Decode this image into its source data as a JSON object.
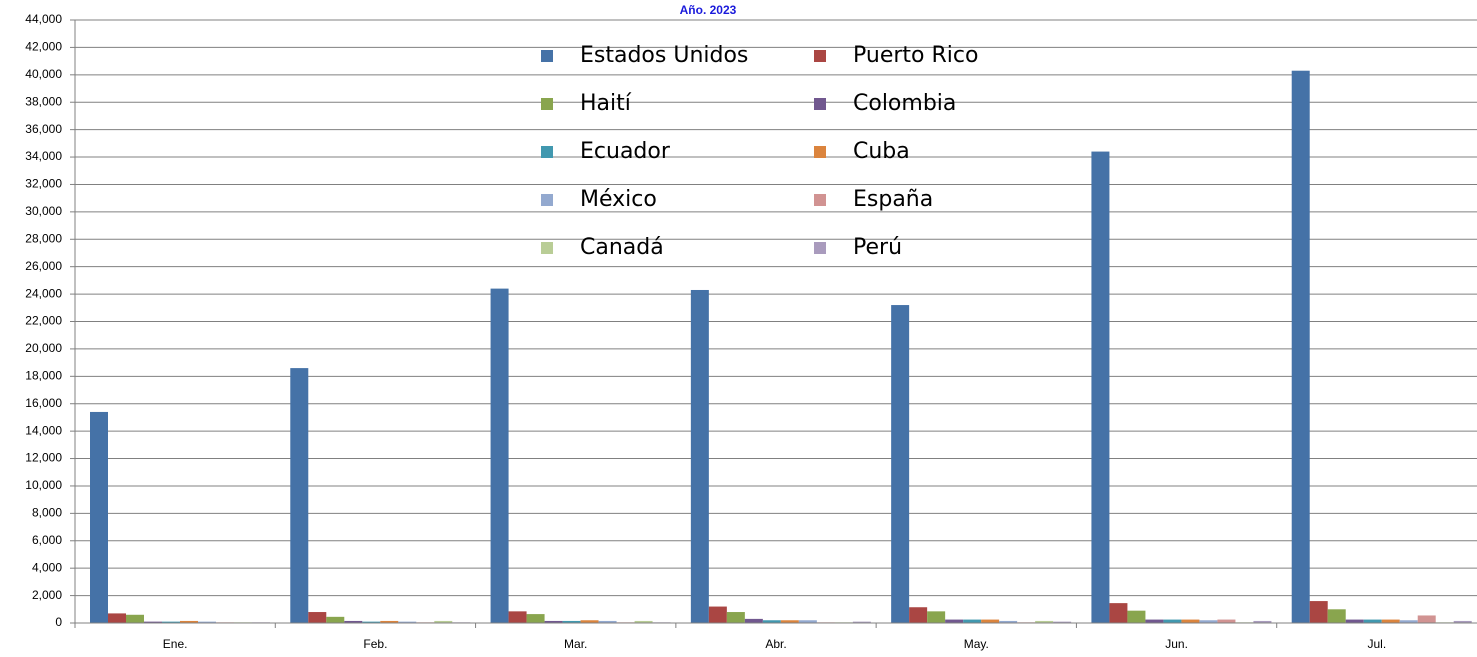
{
  "chart_data": {
    "type": "bar",
    "title": "Año. 2023",
    "categories": [
      "Ene.",
      "Feb.",
      "Mar.",
      "Abr.",
      "May.",
      "Jun.",
      "Jul."
    ],
    "series": [
      {
        "name": "Estados Unidos",
        "color": "#4572A7",
        "values": [
          15400,
          18600,
          24400,
          24300,
          23200,
          34400,
          40300
        ]
      },
      {
        "name": "Puerto  Rico",
        "color": "#AA4643",
        "values": [
          700,
          800,
          850,
          1200,
          1150,
          1450,
          1600
        ]
      },
      {
        "name": "Haití",
        "color": "#89A54E",
        "values": [
          600,
          450,
          650,
          800,
          850,
          900,
          1000
        ]
      },
      {
        "name": "Colombia",
        "color": "#71588F",
        "values": [
          100,
          150,
          150,
          300,
          250,
          250,
          250
        ]
      },
      {
        "name": "Ecuador",
        "color": "#4198AF",
        "values": [
          100,
          100,
          150,
          200,
          250,
          250,
          250
        ]
      },
      {
        "name": "Cuba",
        "color": "#DB843D",
        "values": [
          150,
          150,
          200,
          200,
          250,
          250,
          250
        ]
      },
      {
        "name": "México",
        "color": "#93A9CF",
        "values": [
          100,
          100,
          150,
          200,
          150,
          200,
          200
        ]
      },
      {
        "name": "España",
        "color": "#D19392",
        "values": [
          50,
          50,
          50,
          50,
          50,
          250,
          550
        ]
      },
      {
        "name": "Canadá",
        "color": "#B9CD96",
        "values": [
          50,
          150,
          150,
          50,
          150,
          50,
          50
        ]
      },
      {
        "name": "Perú",
        "color": "#A99BBD",
        "values": [
          50,
          50,
          50,
          100,
          100,
          150,
          150
        ]
      }
    ],
    "ylim": [
      0,
      44000
    ],
    "yticks": [
      0,
      {
        "value": 2000,
        "label": "2,000"
      },
      {
        "value": 4000,
        "label": "4,000"
      },
      {
        "value": 6000,
        "label": "6,000"
      },
      {
        "value": 8000,
        "label": "8,000"
      },
      {
        "value": 10000,
        "label": "10,000"
      },
      {
        "value": 12000,
        "label": "12,000"
      },
      {
        "value": 14000,
        "label": "14,000"
      },
      {
        "value": 16000,
        "label": "16,000"
      },
      {
        "value": 18000,
        "label": "18,000"
      },
      {
        "value": 20000,
        "label": "20,000"
      },
      {
        "value": 22000,
        "label": "22,000"
      },
      {
        "value": 24000,
        "label": "24,000"
      },
      {
        "value": 26000,
        "label": "26,000"
      },
      {
        "value": 28000,
        "label": "28,000"
      },
      {
        "value": 30000,
        "label": "30,000"
      },
      {
        "value": 32000,
        "label": "32,000"
      },
      {
        "value": 34000,
        "label": "34,000"
      },
      {
        "value": 36000,
        "label": "36,000"
      },
      {
        "value": 38000,
        "label": "38,000"
      },
      {
        "value": 40000,
        "label": "40,000"
      },
      {
        "value": 42000,
        "label": "42,000"
      },
      {
        "value": 44000,
        "label": "44,000"
      }
    ],
    "grid": true
  }
}
